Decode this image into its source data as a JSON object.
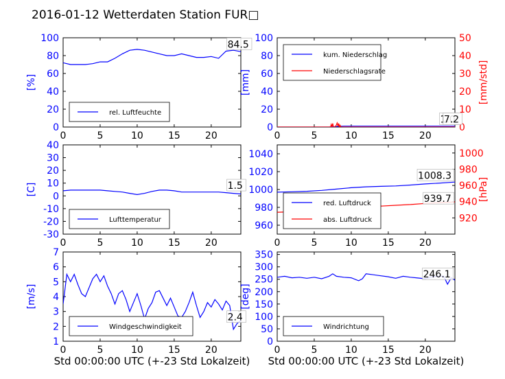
{
  "figure": {
    "title": "2016-01-12 Wetterdaten Station FUR□"
  },
  "chart_data": [
    {
      "id": "humidity",
      "type": "line",
      "ylabel": "[%]",
      "xlabel": "",
      "xlim": [
        0,
        24
      ],
      "ylim": [
        0,
        100
      ],
      "xticks": [
        0,
        5,
        10,
        15,
        20
      ],
      "yticks": [
        0,
        20,
        40,
        60,
        80,
        100
      ],
      "legend": {
        "placement": "lower-left",
        "entries": [
          {
            "name": "rel. Luftfeuchte",
            "color": "#0000ff"
          }
        ]
      },
      "annotation": {
        "text": "84.5",
        "x": 22.2,
        "y": 89
      },
      "series": [
        {
          "name": "rel. Luftfeuchte",
          "color": "#0000ff",
          "axis": "left",
          "x": [
            0,
            1,
            2,
            3,
            4,
            5,
            6,
            7,
            8,
            9,
            10,
            11,
            12,
            13,
            14,
            15,
            16,
            17,
            18,
            19,
            20,
            21,
            22,
            23,
            24
          ],
          "y": [
            72,
            70,
            70,
            70,
            71,
            73,
            73,
            77,
            82,
            86,
            87,
            86,
            84,
            82,
            80,
            80,
            82,
            80,
            78,
            78,
            79,
            77,
            85,
            86,
            84.5
          ]
        }
      ]
    },
    {
      "id": "precipitation",
      "type": "line",
      "ylabel": "[mm]",
      "ylabel_right": "[mm/std]",
      "xlabel": "",
      "xlim": [
        0,
        24
      ],
      "ylim": [
        0,
        100
      ],
      "ylim_right": [
        0,
        50
      ],
      "xticks": [
        0,
        5,
        10,
        15,
        20
      ],
      "yticks": [
        0,
        20,
        40,
        60,
        80,
        100
      ],
      "yticks_right": [
        0,
        10,
        20,
        30,
        40,
        50
      ],
      "legend": {
        "placement": "upper-left",
        "entries": [
          {
            "name": "kum. Niederschlag",
            "color": "#0000ff"
          },
          {
            "name": "Niederschlagsrate",
            "color": "#ff0000"
          }
        ]
      },
      "annotations": [
        {
          "text": "1.0",
          "x": 22.0,
          "y": 5
        },
        {
          "text": "7.2",
          "x": 22.5,
          "y": 5
        }
      ],
      "series": [
        {
          "name": "kum. Niederschlag",
          "color": "#0000ff",
          "axis": "left",
          "x": [
            0,
            7,
            7.5,
            8,
            8.5,
            9,
            24
          ],
          "y": [
            0,
            0,
            0.3,
            0.6,
            0.8,
            1.0,
            1.0
          ]
        },
        {
          "name": "Niederschlagsrate",
          "color": "#ff0000",
          "axis": "right",
          "x": [
            0,
            7.2,
            7.3,
            7.4,
            7.5,
            7.6,
            7.8,
            8.0,
            8.1,
            8.2,
            8.3,
            8.4,
            8.5,
            8.6,
            24
          ],
          "y": [
            0,
            0,
            1.5,
            0,
            2.0,
            0,
            0,
            1.2,
            2.3,
            0.5,
            2.0,
            0,
            1.0,
            0,
            0
          ]
        }
      ]
    },
    {
      "id": "temperature",
      "type": "line",
      "ylabel": "[C]",
      "xlabel": "",
      "xlim": [
        0,
        24
      ],
      "ylim": [
        -30,
        40
      ],
      "xticks": [
        0,
        5,
        10,
        15,
        20
      ],
      "yticks": [
        -30,
        -20,
        -10,
        0,
        10,
        20,
        30,
        40
      ],
      "legend": {
        "placement": "lower-left",
        "entries": [
          {
            "name": "Lufttemperatur",
            "color": "#0000ff"
          }
        ]
      },
      "annotation": {
        "text": "1.5",
        "x": 22.2,
        "y": 5.5
      },
      "series": [
        {
          "name": "Lufttemperatur",
          "color": "#0000ff",
          "axis": "left",
          "x": [
            0,
            1,
            2,
            3,
            4,
            5,
            6,
            7,
            8,
            9,
            10,
            11,
            12,
            13,
            14,
            15,
            16,
            17,
            18,
            19,
            20,
            21,
            22,
            23,
            24
          ],
          "y": [
            4,
            4.5,
            4.5,
            4.5,
            4.5,
            4.5,
            4,
            3.5,
            3,
            2,
            1,
            2,
            3.5,
            4.5,
            4.5,
            4,
            3,
            3,
            3,
            3,
            3,
            3,
            2.5,
            2,
            1.5
          ]
        }
      ]
    },
    {
      "id": "pressure",
      "type": "line",
      "ylabel": "",
      "ylabel_right": "[hPa]",
      "xlabel": "",
      "xlim": [
        0,
        24
      ],
      "ylim": [
        950,
        1050
      ],
      "ylim_right": [
        900,
        1010
      ],
      "xticks": [
        0,
        5,
        10,
        15,
        20
      ],
      "yticks": [
        960,
        980,
        1000,
        1020,
        1040
      ],
      "yticks_right": [
        920,
        940,
        960,
        980,
        1000
      ],
      "legend": {
        "placement": "lower-left",
        "entries": [
          {
            "name": "red. Luftdruck",
            "color": "#0000ff"
          },
          {
            "name": "abs. Luftdruck",
            "color": "#ff0000"
          }
        ]
      },
      "annotations": [
        {
          "text": "1008.3",
          "x": 19.0,
          "y": 1012
        },
        {
          "text": "939.7",
          "x": 19.8,
          "y": 986
        }
      ],
      "series": [
        {
          "name": "red. Luftdruck",
          "color": "#0000ff",
          "axis": "left",
          "x": [
            0,
            2,
            4,
            6,
            8,
            10,
            12,
            14,
            16,
            18,
            20,
            22,
            24
          ],
          "y": [
            997,
            997.5,
            998,
            999,
            1000.5,
            1002,
            1003,
            1003.5,
            1004,
            1005,
            1006.2,
            1007.2,
            1008.3
          ]
        },
        {
          "name": "abs. Luftdruck",
          "color": "#ff0000",
          "axis": "right",
          "x": [
            0,
            2,
            4,
            6,
            8,
            10,
            12,
            14,
            16,
            18,
            20,
            22,
            24
          ],
          "y": [
            927,
            927.5,
            928,
            929,
            930.5,
            932,
            933.5,
            934.5,
            935.5,
            936.5,
            937.8,
            938.8,
            939.7
          ]
        }
      ]
    },
    {
      "id": "windspeed",
      "type": "line",
      "ylabel": "[m/s]",
      "xlabel": "Std 00:00:00 UTC (+-23 Std Lokalzeit)",
      "xlim": [
        0,
        24
      ],
      "ylim": [
        1,
        7
      ],
      "xticks": [
        0,
        5,
        10,
        15,
        20
      ],
      "yticks": [
        1,
        2,
        3,
        4,
        5,
        6,
        7
      ],
      "legend": {
        "placement": "lower-left",
        "entries": [
          {
            "name": "Windgeschwindigkeit",
            "color": "#0000ff"
          }
        ]
      },
      "annotation": {
        "text": "2.4",
        "x": 22.2,
        "y": 2.4
      },
      "series": [
        {
          "name": "Windgeschwindigkeit",
          "color": "#0000ff",
          "axis": "left",
          "x": [
            0,
            0.5,
            1,
            1.5,
            2,
            2.5,
            3,
            3.5,
            4,
            4.5,
            5,
            5.5,
            6,
            6.5,
            7,
            7.5,
            8,
            8.5,
            9,
            9.5,
            10,
            10.5,
            11,
            11.5,
            12,
            12.5,
            13,
            13.5,
            14,
            14.5,
            15,
            15.5,
            16,
            16.5,
            17,
            17.5,
            18,
            18.5,
            19,
            19.5,
            20,
            20.5,
            21,
            21.5,
            22,
            22.5,
            23,
            23.5,
            24
          ],
          "y": [
            3.5,
            5.5,
            5.0,
            5.5,
            4.8,
            4.2,
            4.0,
            4.6,
            5.2,
            5.5,
            5.0,
            5.4,
            4.7,
            4.2,
            3.5,
            4.2,
            4.4,
            3.8,
            3.0,
            3.6,
            4.2,
            3.4,
            2.5,
            3.2,
            3.6,
            4.3,
            4.4,
            3.9,
            3.4,
            3.9,
            3.3,
            2.7,
            2.6,
            3.0,
            3.6,
            4.3,
            3.4,
            2.6,
            3.0,
            3.6,
            3.3,
            3.8,
            3.5,
            3.1,
            3.7,
            3.4,
            1.8,
            2.2,
            2.4
          ]
        }
      ]
    },
    {
      "id": "winddirection",
      "type": "line",
      "ylabel": "[deg]",
      "xlabel": "Std 00:00:00 UTC (+-23 Std Lokalzeit)",
      "xlim": [
        0,
        24
      ],
      "ylim": [
        0,
        360
      ],
      "xticks": [
        0,
        5,
        10,
        15,
        20
      ],
      "yticks": [
        0,
        50,
        100,
        150,
        200,
        250,
        300,
        350
      ],
      "legend": {
        "placement": "lower-left",
        "entries": [
          {
            "name": "Windrichtung",
            "color": "#0000ff"
          }
        ]
      },
      "annotation": {
        "text": "246.1",
        "x": 19.7,
        "y": 257
      },
      "series": [
        {
          "name": "Windrichtung",
          "color": "#0000ff",
          "axis": "left",
          "x": [
            0,
            1,
            2,
            3,
            4,
            5,
            6,
            7,
            7.5,
            8,
            9,
            10,
            11,
            11.5,
            12,
            13,
            14,
            15,
            16,
            17,
            18,
            19,
            20,
            21,
            22,
            22.5,
            23,
            23.5,
            24
          ],
          "y": [
            258,
            262,
            256,
            258,
            254,
            258,
            252,
            262,
            272,
            262,
            258,
            256,
            244,
            252,
            272,
            268,
            264,
            260,
            254,
            262,
            258,
            255,
            252,
            260,
            262,
            262,
            230,
            256,
            246.1
          ]
        }
      ]
    }
  ]
}
